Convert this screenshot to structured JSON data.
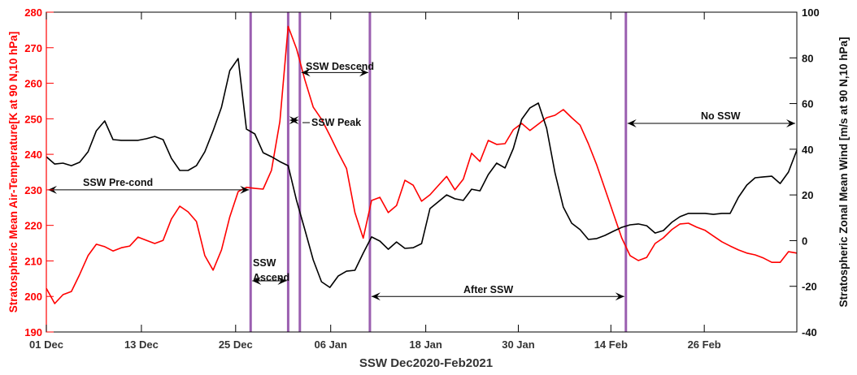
{
  "chart_data": {
    "type": "line",
    "title": "",
    "xlabel": "SSW Dec2020-Feb2021",
    "ylabel_left": "Stratospheric Mean Air-Temperature[K at 90 N,10 hPa]",
    "ylabel_right": "Stratospheric Zonal Mean Wind [m/s at 90 N,10 hPa]",
    "xlim": [
      0,
      90
    ],
    "ylim_left": [
      190,
      280
    ],
    "ylim_right": [
      -40,
      100
    ],
    "x_ticks": [
      {
        "pos": 0,
        "label": "01 Dec"
      },
      {
        "pos": 11.4,
        "label": "13 Dec"
      },
      {
        "pos": 22.7,
        "label": "25 Dec"
      },
      {
        "pos": 34.1,
        "label": "06 Jan"
      },
      {
        "pos": 45.5,
        "label": "18 Jan"
      },
      {
        "pos": 56.6,
        "label": "30 Jan"
      },
      {
        "pos": 67.7,
        "label": "14 Feb"
      },
      {
        "pos": 78.9,
        "label": "26 Feb"
      }
    ],
    "y_ticks_left": [
      "190",
      "200",
      "210",
      "220",
      "230",
      "240",
      "250",
      "260",
      "270",
      "280"
    ],
    "y_ticks_right": [
      "-40",
      "-20",
      "0",
      "20",
      "40",
      "60",
      "80",
      "100"
    ],
    "colors": {
      "temperature": "#ff0000",
      "wind": "#000000",
      "phase_line": "#9b5fb0"
    },
    "series": [
      {
        "name": "Temperature",
        "axis": "left",
        "values": [
          202.3,
          198,
          200.5,
          201.4,
          206.2,
          211.5,
          214.7,
          214,
          212.8,
          213.7,
          214.2,
          216.7,
          215.8,
          214.9,
          215.8,
          221.8,
          225.4,
          223.8,
          221.1,
          211.5,
          207.4,
          213.1,
          222.4,
          229.5,
          230.7,
          230.4,
          230.2,
          235.5,
          249.2,
          276,
          269.7,
          261,
          253.3,
          249.9,
          245.3,
          240.5,
          236,
          223.6,
          216.4,
          227,
          227.9,
          223.6,
          225.6,
          232.7,
          231.3,
          226.8,
          228.6,
          231.2,
          233.8,
          230,
          233,
          240.3,
          238,
          243.9,
          242.8,
          243,
          246.9,
          248.7,
          246.7,
          248.5,
          250.3,
          251,
          252.6,
          250.3,
          248.2,
          243,
          237,
          230.2,
          223.3,
          216.5,
          211.5,
          210.1,
          211,
          214.9,
          216.5,
          218.8,
          220.4,
          220.6,
          219.5,
          218.6,
          217,
          215.4,
          214.2,
          213.1,
          212.2,
          211.7,
          210.8,
          209.6,
          209.6,
          212.6,
          212.2
        ]
      },
      {
        "name": "Zonal Mean Wind",
        "axis": "right",
        "values": [
          36.7,
          33.5,
          33.9,
          32.8,
          34.3,
          38.9,
          48.1,
          52.4,
          44.2,
          43.9,
          43.9,
          43.9,
          44.6,
          45.6,
          44.2,
          36,
          30.7,
          30.7,
          32.8,
          38.9,
          48.1,
          58.4,
          74.4,
          79.7,
          48.8,
          46.7,
          38.5,
          36.7,
          34.6,
          32.8,
          17.6,
          4.8,
          -8.4,
          -18,
          -20.5,
          -15.5,
          -13.4,
          -13,
          -5.5,
          1.6,
          -0.2,
          -3.8,
          -0.6,
          -3.4,
          -3.1,
          -1.3,
          14,
          17,
          20,
          18.3,
          17.6,
          22.5,
          21.8,
          28.9,
          33.9,
          31.8,
          40.3,
          53.1,
          58.1,
          60.2,
          49.2,
          29.6,
          14.7,
          7.6,
          4.8,
          0.5,
          0.9,
          2.3,
          4.1,
          5.8,
          6.9,
          7.3,
          6.5,
          3.3,
          4.4,
          8,
          10.5,
          11.9,
          11.9,
          11.9,
          11.5,
          11.9,
          11.9,
          19,
          24.3,
          27.5,
          27.9,
          28.2,
          25,
          30,
          39.6
        ]
      }
    ],
    "phase_lines": [
      24.5,
      29.0,
      30.4,
      38.8,
      69.5
    ],
    "annotations": [
      {
        "label": "SSW Pre-cond",
        "from": 0,
        "to": 24.5,
        "y": 230
      },
      {
        "label": "SSW Ascend",
        "from": 24.5,
        "to": 29.0,
        "y": 204.4
      },
      {
        "label": "SSW Peak",
        "from": 29.0,
        "to": 30.4,
        "y": 249.6
      },
      {
        "label": "SSW Descend",
        "from": 30.4,
        "to": 38.8,
        "y": 263
      },
      {
        "label": "After SSW",
        "from": 38.8,
        "to": 69.5,
        "y": 200
      },
      {
        "label": "No SSW",
        "from": 69.5,
        "to": 90,
        "y": 248.7
      }
    ]
  }
}
